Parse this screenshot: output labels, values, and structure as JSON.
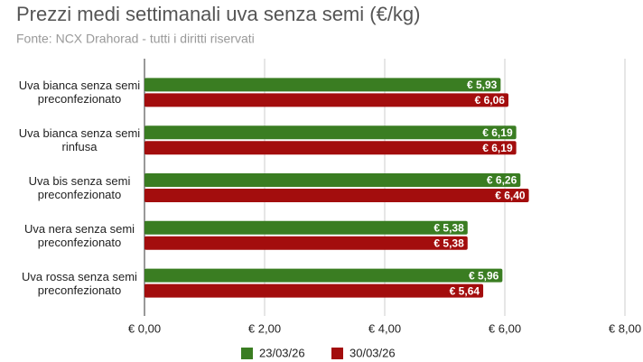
{
  "chart_data": {
    "type": "bar",
    "orientation": "horizontal",
    "title": "Prezzi medi settimanali uva senza semi (€/kg)",
    "subtitle": "Fonte: NCX Drahorad - tutti i diritti riservati",
    "categories": [
      "Uva bianca senza semi preconfezionato",
      "Uva bianca senza semi rinfusa",
      "Uva bis senza semi preconfezionato",
      "Uva nera senza semi preconfezionato",
      "Uva rossa senza semi preconfezionato"
    ],
    "series": [
      {
        "name": "23/03/26",
        "color": "#3a7d22",
        "values": [
          5.93,
          6.19,
          6.26,
          5.38,
          5.96
        ],
        "value_labels": [
          "€ 5,93",
          "€ 6,19",
          "€ 6,26",
          "€ 5,38",
          "€ 5,96"
        ]
      },
      {
        "name": "30/03/26",
        "color": "#a30d0d",
        "values": [
          6.06,
          6.19,
          6.4,
          5.38,
          5.64
        ],
        "value_labels": [
          "€ 6,06",
          "€ 6,19",
          "€ 6,40",
          "€ 5,38",
          "€ 5,64"
        ]
      }
    ],
    "xlim": [
      0,
      8
    ],
    "xticks": [
      {
        "value": 0,
        "label": "€ 0,00"
      },
      {
        "value": 2,
        "label": "€ 2,00"
      },
      {
        "value": 4,
        "label": "€ 4,00"
      },
      {
        "value": 6,
        "label": "€ 6,00"
      },
      {
        "value": 8,
        "label": "€ 8,00"
      }
    ],
    "grid": true,
    "legend": "bottom"
  }
}
